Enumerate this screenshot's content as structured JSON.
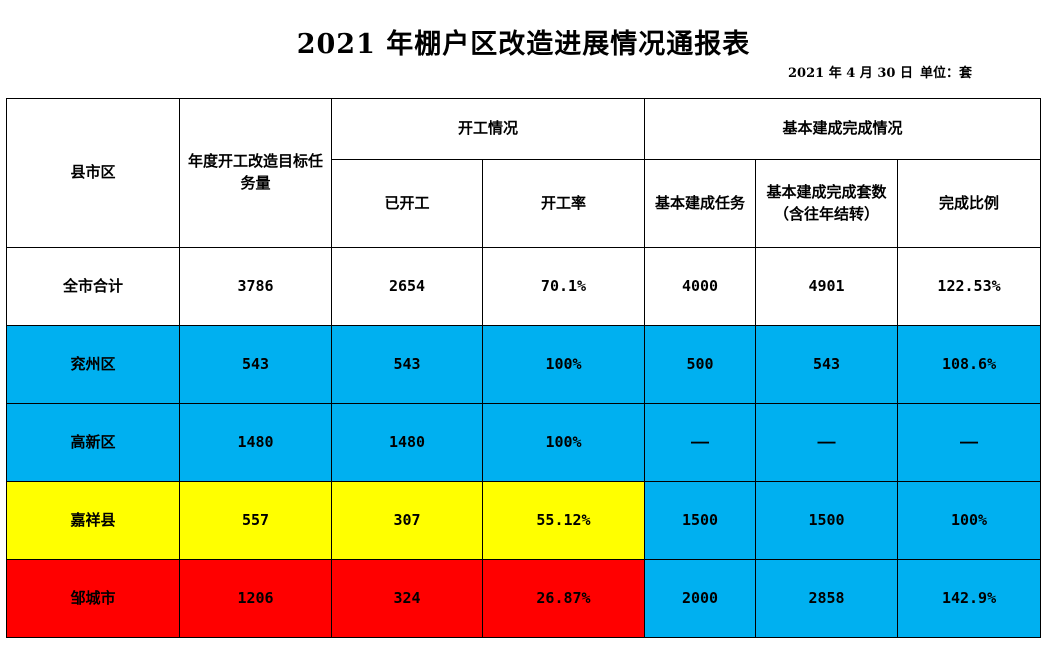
{
  "document": {
    "title": "2021 年棚户区改造进展情况通报表",
    "date": "2021 年 4 月 30 日",
    "unit": "单位：套"
  },
  "colors": {
    "white": "#ffffff",
    "blue": "#00b0f0",
    "yellow": "#ffff00",
    "red": "#ff0000"
  },
  "table": {
    "headers": {
      "county": "县市区",
      "annual_target": "年度开工改造目标任务量",
      "construction_group": "开工情况",
      "started": "已开工",
      "start_rate": "开工率",
      "completion_group": "基本建成完成情况",
      "completion_task": "基本建成任务",
      "completed_sets": "基本建成完成套数（含往年结转）",
      "completion_ratio": "完成比例"
    },
    "rows": [
      {
        "name": "全市合计",
        "target": "3786",
        "started": "2654",
        "rate": "70.1%",
        "task": "4000",
        "completed": "4901",
        "ratio": "122.53%"
      },
      {
        "name": "兖州区",
        "target": "543",
        "started": "543",
        "rate": "100%",
        "task": "500",
        "completed": "543",
        "ratio": "108.6%"
      },
      {
        "name": "高新区",
        "target": "1480",
        "started": "1480",
        "rate": "100%",
        "task": "——",
        "completed": "——",
        "ratio": "——"
      },
      {
        "name": "嘉祥县",
        "target": "557",
        "started": "307",
        "rate": "55.12%",
        "task": "1500",
        "completed": "1500",
        "ratio": "100%"
      },
      {
        "name": "邹城市",
        "target": "1206",
        "started": "324",
        "rate": "26.87%",
        "task": "2000",
        "completed": "2858",
        "ratio": "142.9%"
      }
    ]
  }
}
